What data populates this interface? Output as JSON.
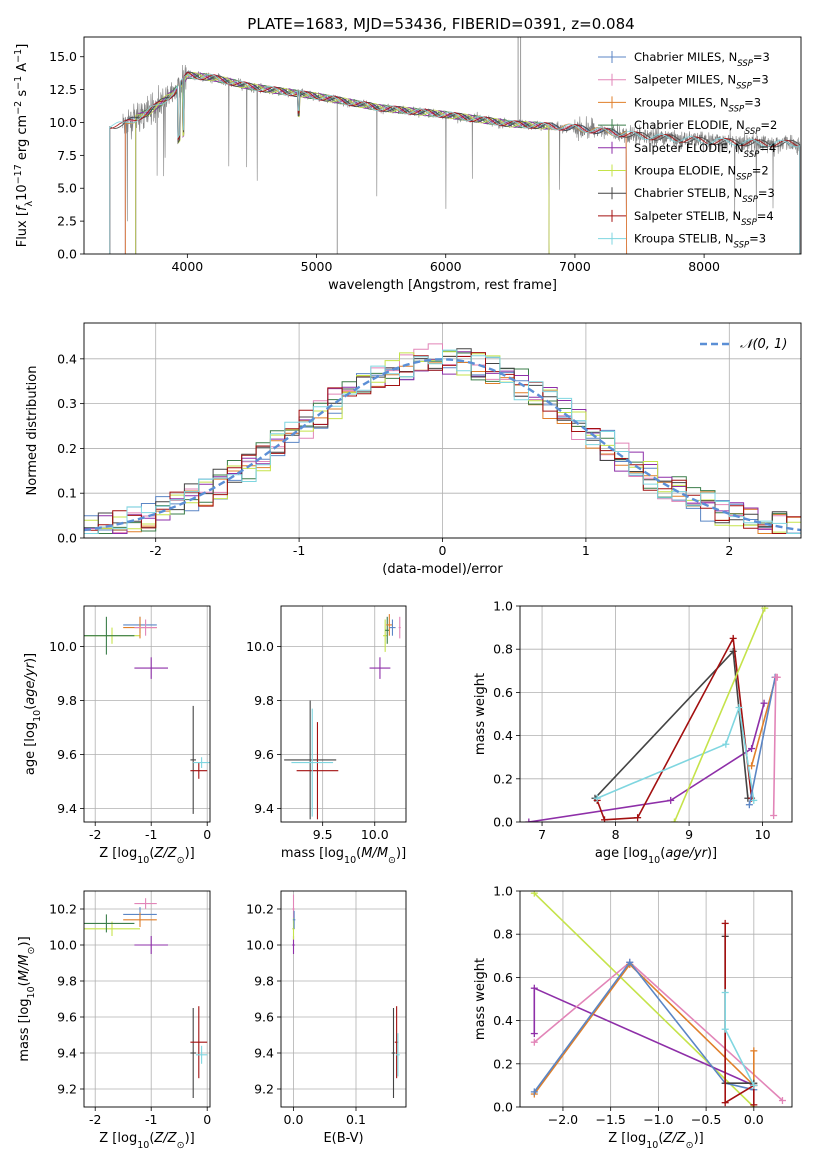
{
  "figure": {
    "title": "PLATE=1683, MJD=53436, FIBERID=0391, z=0.084"
  },
  "chart_data": [
    {
      "id": "spectrum",
      "type": "line",
      "xlabel": "wavelength [Angstrom, rest frame]",
      "ylabel": "Flux [f_λ 10^-17 erg cm^-2 s^-1 A^-1]",
      "xlim": [
        3200,
        8750
      ],
      "ylim": [
        0,
        16.5
      ],
      "xticks": [
        4000,
        5000,
        6000,
        7000,
        8000
      ],
      "yticks": [
        0.0,
        2.5,
        5.0,
        7.5,
        10.0,
        12.5,
        15.0
      ],
      "grid": false,
      "legend_position": "top-right",
      "data_continuum_x": [
        3500,
        3700,
        3900,
        4000,
        4200,
        4500,
        5000,
        5500,
        6000,
        6500,
        7000,
        7500,
        8000,
        8500
      ],
      "data_continuum_y": [
        9.8,
        10.8,
        12.3,
        13.6,
        13.4,
        12.7,
        12.0,
        11.1,
        10.6,
        9.9,
        9.6,
        9.0,
        8.6,
        8.4
      ],
      "series": [
        {
          "name": "Chabrier MILES, N_SSP=3",
          "color": "#5b86c5"
        },
        {
          "name": "Salpeter MILES, N_SSP=3",
          "color": "#e285b8"
        },
        {
          "name": "Kroupa MILES, N_SSP=3",
          "color": "#e07f2a"
        },
        {
          "name": "Chabrier ELODIE, N_SSP=2",
          "color": "#3b7d4a"
        },
        {
          "name": "Salpeter ELODIE, N_SSP=4",
          "color": "#8e2fa8"
        },
        {
          "name": "Kroupa ELODIE, N_SSP=2",
          "color": "#c5e34a"
        },
        {
          "name": "Chabrier STELIB, N_SSP=3",
          "color": "#444444"
        },
        {
          "name": "Salpeter STELIB, N_SSP=4",
          "color": "#a31010"
        },
        {
          "name": "Kroupa STELIB, N_SSP=3",
          "color": "#7fd6e0"
        }
      ]
    },
    {
      "id": "residuals",
      "type": "line",
      "xlabel": "(data-model)/error",
      "ylabel": "Normed distribution",
      "xlim": [
        -2.5,
        2.5
      ],
      "ylim": [
        0,
        0.48
      ],
      "xticks": [
        -2,
        -1,
        0,
        1,
        2
      ],
      "yticks": [
        0.0,
        0.1,
        0.2,
        0.3,
        0.4
      ],
      "grid": true,
      "legend_position": "top-right",
      "legend_label": "N(0,1)"
    },
    {
      "id": "z-age",
      "type": "scatter",
      "xlabel": "Z [log10(Z/Z☉)]",
      "ylabel": "age  [log10(age/yr)]",
      "xlim": [
        -2.2,
        0.05
      ],
      "ylim": [
        9.35,
        10.15
      ],
      "xticks": [
        -2,
        -1,
        0
      ],
      "yticks": [
        9.4,
        9.6,
        9.8,
        10.0
      ],
      "points": [
        {
          "x": -1.7,
          "y": 10.04,
          "xerr": 0.5,
          "yerr": 0.03,
          "c": "#c5e34a"
        },
        {
          "x": -1.8,
          "y": 10.04,
          "xerr": 0.5,
          "yerr": 0.07,
          "c": "#3b7d4a"
        },
        {
          "x": -1.2,
          "y": 10.08,
          "xerr": 0.3,
          "yerr": 0.03,
          "c": "#5b86c5"
        },
        {
          "x": -1.2,
          "y": 10.07,
          "xerr": 0.3,
          "yerr": 0.04,
          "c": "#e07f2a"
        },
        {
          "x": -1.1,
          "y": 10.07,
          "xerr": 0.2,
          "yerr": 0.03,
          "c": "#e285b8"
        },
        {
          "x": -1.0,
          "y": 9.92,
          "xerr": 0.3,
          "yerr": 0.04,
          "c": "#8e2fa8"
        },
        {
          "x": -0.25,
          "y": 9.58,
          "xerr": 0.05,
          "yerr": 0.2,
          "c": "#444444"
        },
        {
          "x": -0.15,
          "y": 9.54,
          "xerr": 0.15,
          "yerr": 0.03,
          "c": "#a31010"
        },
        {
          "x": -0.1,
          "y": 9.57,
          "xerr": 0.15,
          "yerr": 0.02,
          "c": "#7fd6e0"
        }
      ]
    },
    {
      "id": "mass-age",
      "type": "scatter",
      "xlabel": "mass [log10(M/M☉)]",
      "ylabel": "",
      "xlim": [
        9.1,
        10.3
      ],
      "ylim": [
        9.35,
        10.15
      ],
      "xticks": [
        9.5,
        10.0
      ],
      "yticks": [
        9.4,
        9.6,
        9.8,
        10.0
      ],
      "points": [
        {
          "x": 9.38,
          "y": 9.58,
          "xerr": 0.25,
          "yerr": 0.22,
          "c": "#444444"
        },
        {
          "x": 9.45,
          "y": 9.54,
          "xerr": 0.2,
          "yerr": 0.18,
          "c": "#a31010"
        },
        {
          "x": 9.4,
          "y": 9.57,
          "xerr": 0.2,
          "yerr": 0.2,
          "c": "#7fd6e0"
        },
        {
          "x": 10.05,
          "y": 9.92,
          "xerr": 0.1,
          "yerr": 0.04,
          "c": "#8e2fa8"
        },
        {
          "x": 10.1,
          "y": 10.04,
          "xerr": 0.02,
          "yerr": 0.06,
          "c": "#c5e34a"
        },
        {
          "x": 10.12,
          "y": 10.06,
          "xerr": 0.02,
          "yerr": 0.05,
          "c": "#3b7d4a"
        },
        {
          "x": 10.14,
          "y": 10.08,
          "xerr": 0.03,
          "yerr": 0.04,
          "c": "#e07f2a"
        },
        {
          "x": 10.17,
          "y": 10.07,
          "xerr": 0.03,
          "yerr": 0.03,
          "c": "#5b86c5"
        },
        {
          "x": 10.24,
          "y": 10.07,
          "xerr": 0.01,
          "yerr": 0.04,
          "c": "#e285b8"
        }
      ]
    },
    {
      "id": "age-weight",
      "type": "line",
      "xlabel": "age  [log10(age/yr)]",
      "ylabel": "mass weight",
      "xlim": [
        6.7,
        10.4
      ],
      "ylim": [
        0,
        1.0
      ],
      "xticks": [
        7,
        8,
        9,
        10
      ],
      "yticks": [
        0.0,
        0.2,
        0.4,
        0.6,
        0.8,
        1.0
      ],
      "grid": true,
      "series": [
        {
          "c": "#8e2fa8",
          "x": [
            6.82,
            8.75,
            9.85,
            10.02
          ],
          "y": [
            0.0,
            0.1,
            0.34,
            0.55
          ]
        },
        {
          "c": "#444444",
          "x": [
            7.72,
            9.6,
            9.8
          ],
          "y": [
            0.11,
            0.79,
            0.11
          ]
        },
        {
          "c": "#a31010",
          "x": [
            7.75,
            7.85,
            8.3,
            9.6,
            9.85
          ],
          "y": [
            0.1,
            0.01,
            0.02,
            0.85,
            0.11
          ]
        },
        {
          "c": "#7fd6e0",
          "x": [
            7.75,
            9.5,
            9.68,
            9.88
          ],
          "y": [
            0.11,
            0.36,
            0.53,
            0.1
          ]
        },
        {
          "c": "#c5e34a",
          "x": [
            8.8,
            10.03
          ],
          "y": [
            0.0,
            0.99
          ]
        },
        {
          "c": "#e07f2a",
          "x": [
            9.85,
            10.18
          ],
          "y": [
            0.26,
            0.67
          ]
        },
        {
          "c": "#5b86c5",
          "x": [
            9.82,
            10.17
          ],
          "y": [
            0.08,
            0.67
          ]
        },
        {
          "c": "#e285b8",
          "x": [
            10.15,
            10.18,
            10.2
          ],
          "y": [
            0.03,
            0.67,
            0.67
          ]
        }
      ]
    },
    {
      "id": "z-mass",
      "type": "scatter",
      "xlabel": "Z [log10(Z/Z☉)]",
      "ylabel": "mass [log10(M/M☉)]",
      "xlim": [
        -2.2,
        0.05
      ],
      "ylim": [
        9.1,
        10.3
      ],
      "xticks": [
        -2,
        -1,
        0
      ],
      "yticks": [
        9.2,
        9.4,
        9.6,
        9.8,
        10.0,
        10.2
      ],
      "points": [
        {
          "x": -1.7,
          "y": 10.09,
          "xerr": 0.5,
          "yerr": 0.04,
          "c": "#c5e34a"
        },
        {
          "x": -1.8,
          "y": 10.12,
          "xerr": 0.5,
          "yerr": 0.05,
          "c": "#3b7d4a"
        },
        {
          "x": -1.2,
          "y": 10.17,
          "xerr": 0.3,
          "yerr": 0.04,
          "c": "#5b86c5"
        },
        {
          "x": -1.2,
          "y": 10.14,
          "xerr": 0.3,
          "yerr": 0.04,
          "c": "#e07f2a"
        },
        {
          "x": -1.1,
          "y": 10.23,
          "xerr": 0.2,
          "yerr": 0.03,
          "c": "#e285b8"
        },
        {
          "x": -1.0,
          "y": 10.0,
          "xerr": 0.3,
          "yerr": 0.05,
          "c": "#8e2fa8"
        },
        {
          "x": -0.25,
          "y": 9.4,
          "xerr": 0.05,
          "yerr": 0.25,
          "c": "#444444"
        },
        {
          "x": -0.15,
          "y": 9.46,
          "xerr": 0.15,
          "yerr": 0.2,
          "c": "#a31010"
        },
        {
          "x": -0.1,
          "y": 9.39,
          "xerr": 0.1,
          "yerr": 0.05,
          "c": "#7fd6e0"
        }
      ]
    },
    {
      "id": "ebv-mass",
      "type": "scatter",
      "xlabel": "E(B-V)",
      "ylabel": "",
      "xlim": [
        -0.02,
        0.18
      ],
      "ylim": [
        9.1,
        10.3
      ],
      "xticks": [
        0.0,
        0.1
      ],
      "yticks": [
        9.2,
        9.4,
        9.6,
        9.8,
        10.0,
        10.2
      ],
      "points": [
        {
          "x": 0.0,
          "y": 10.2,
          "xerr": 0.002,
          "yerr": 0.08,
          "c": "#e285b8"
        },
        {
          "x": 0.0,
          "y": 10.0,
          "xerr": 0.002,
          "yerr": 0.05,
          "c": "#8e2fa8"
        },
        {
          "x": 0.0,
          "y": 10.09,
          "xerr": 0.002,
          "yerr": 0.06,
          "c": "#c5e34a"
        },
        {
          "x": 0.001,
          "y": 10.14,
          "xerr": 0.002,
          "yerr": 0.05,
          "c": "#5b86c5"
        },
        {
          "x": 0.16,
          "y": 9.4,
          "xerr": 0.003,
          "yerr": 0.25,
          "c": "#444444"
        },
        {
          "x": 0.165,
          "y": 9.46,
          "xerr": 0.003,
          "yerr": 0.2,
          "c": "#a31010"
        },
        {
          "x": 0.167,
          "y": 9.39,
          "xerr": 0.003,
          "yerr": 0.12,
          "c": "#7fd6e0"
        }
      ]
    },
    {
      "id": "z-weight",
      "type": "line",
      "xlabel": "Z [log10(Z/Z☉)]",
      "ylabel": "mass weight",
      "xlim": [
        -2.45,
        0.4
      ],
      "ylim": [
        0,
        1.0
      ],
      "xticks": [
        -2.0,
        -1.5,
        -1.0,
        -0.5,
        0.0
      ],
      "yticks": [
        0.0,
        0.2,
        0.4,
        0.6,
        0.8,
        1.0
      ],
      "grid": true,
      "series": [
        {
          "c": "#c5e34a",
          "x": [
            -2.3,
            0.0
          ],
          "y": [
            0.99,
            0.0
          ]
        },
        {
          "c": "#8e2fa8",
          "x": [
            -2.3,
            -2.3,
            0.0
          ],
          "y": [
            0.34,
            0.55,
            0.1
          ]
        },
        {
          "c": "#e285b8",
          "x": [
            -2.3,
            -1.3,
            0.3
          ],
          "y": [
            0.3,
            0.67,
            0.03
          ]
        },
        {
          "c": "#e07f2a",
          "x": [
            -2.3,
            -1.3,
            0.0,
            0.0
          ],
          "y": [
            0.06,
            0.66,
            0.1,
            0.26
          ]
        },
        {
          "c": "#5b86c5",
          "x": [
            -2.3,
            -1.3,
            -0.3,
            0.0
          ],
          "y": [
            0.07,
            0.67,
            0.11,
            0.08
          ]
        },
        {
          "c": "#444444",
          "x": [
            -0.3,
            -0.3,
            0.0
          ],
          "y": [
            0.79,
            0.11,
            0.11
          ]
        },
        {
          "c": "#a31010",
          "x": [
            -0.3,
            -0.3,
            0.0,
            0.0
          ],
          "y": [
            0.85,
            0.02,
            0.1,
            0.01
          ]
        },
        {
          "c": "#7fd6e0",
          "x": [
            -0.3,
            -0.3,
            0.0
          ],
          "y": [
            0.53,
            0.36,
            0.1
          ]
        }
      ]
    }
  ]
}
